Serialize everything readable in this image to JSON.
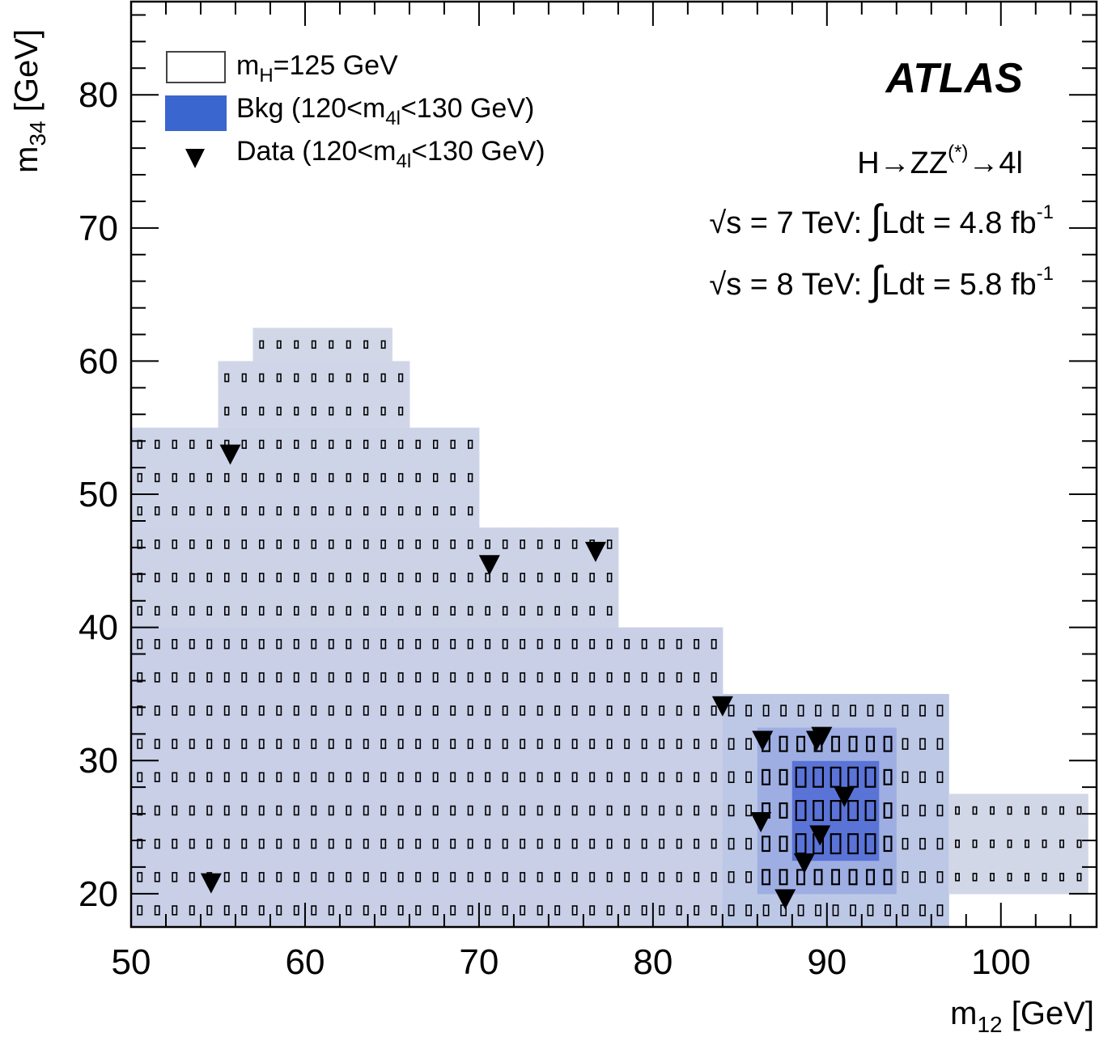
{
  "chart_data": {
    "type": "heatmap",
    "xlabel": "m",
    "xlabel_sub": "12",
    "xlabel_unit": " [GeV]",
    "ylabel": "m",
    "ylabel_sub": "34",
    "ylabel_unit": " [GeV]",
    "xlim": [
      50,
      105.5
    ],
    "ylim": [
      17.5,
      87
    ],
    "x_ticks": [
      50,
      60,
      70,
      80,
      90,
      100
    ],
    "y_ticks": [
      20,
      30,
      40,
      50,
      60,
      70,
      80
    ],
    "atlas_label": "ATLAS",
    "process_label": {
      "a": "H",
      "arrow1": "→",
      "b": "ZZ",
      "sup": "(*)",
      "arrow2": "→",
      "c": "4l"
    },
    "lumi_7": {
      "sqrt": "√",
      "s": "s = 7 TeV: ",
      "int": "∫",
      "rest": "Ldt = 4.8 fb",
      "sup": "-1"
    },
    "lumi_8": {
      "sqrt": "√",
      "s": "s = 8 TeV: ",
      "int": "∫",
      "rest": "Ldt = 5.8 fb",
      "sup": "-1"
    },
    "legend": [
      {
        "kind": "signal-box",
        "text": "m",
        "sub": "H",
        "text2": "=125 GeV"
      },
      {
        "kind": "bkg-fill",
        "text": "Bkg (120<m",
        "sub": "4l",
        "text2": "<130 GeV)"
      },
      {
        "kind": "data-marker",
        "text": "Data (120<m",
        "sub": "4l",
        "text2": "<130 GeV)"
      }
    ],
    "legend_placement": "top-left",
    "bin_width_x": 1.0,
    "bin_width_y": 2.5,
    "colors": {
      "bkg_light": "#dcdfe9",
      "bkg_mid": "#a9b8e4",
      "bkg_dark": "#3855d0",
      "signal_box": "#000000",
      "data_marker": "#000000"
    },
    "bkg_regions": [
      {
        "x": [
          50,
          84
        ],
        "y": [
          17.5,
          40
        ],
        "level": 0.2
      },
      {
        "x": [
          50,
          78
        ],
        "y": [
          40,
          47.5
        ],
        "level": 0.16
      },
      {
        "x": [
          50,
          70
        ],
        "y": [
          47.5,
          55
        ],
        "level": 0.14
      },
      {
        "x": [
          55,
          66
        ],
        "y": [
          55,
          60
        ],
        "level": 0.12
      },
      {
        "x": [
          57,
          65
        ],
        "y": [
          60,
          62.5
        ],
        "level": 0.1
      },
      {
        "x": [
          84,
          97
        ],
        "y": [
          17.5,
          35
        ],
        "level": 0.3
      },
      {
        "x": [
          86,
          94
        ],
        "y": [
          20,
          32.5
        ],
        "level": 0.55
      },
      {
        "x": [
          88,
          93
        ],
        "y": [
          22.5,
          30
        ],
        "level": 0.85
      },
      {
        "x": [
          97,
          105
        ],
        "y": [
          20,
          27.5
        ],
        "level": 0.1
      }
    ],
    "data_points": [
      {
        "x": 55.7,
        "y": 53.0
      },
      {
        "x": 70.6,
        "y": 44.7
      },
      {
        "x": 76.7,
        "y": 45.7
      },
      {
        "x": 54.6,
        "y": 20.8
      },
      {
        "x": 84.0,
        "y": 34.1
      },
      {
        "x": 86.3,
        "y": 31.5
      },
      {
        "x": 89.4,
        "y": 31.5
      },
      {
        "x": 89.7,
        "y": 31.8
      },
      {
        "x": 91.0,
        "y": 27.3
      },
      {
        "x": 86.2,
        "y": 25.4
      },
      {
        "x": 89.6,
        "y": 24.4
      },
      {
        "x": 88.7,
        "y": 22.3
      },
      {
        "x": 87.6,
        "y": 19.6
      }
    ]
  }
}
